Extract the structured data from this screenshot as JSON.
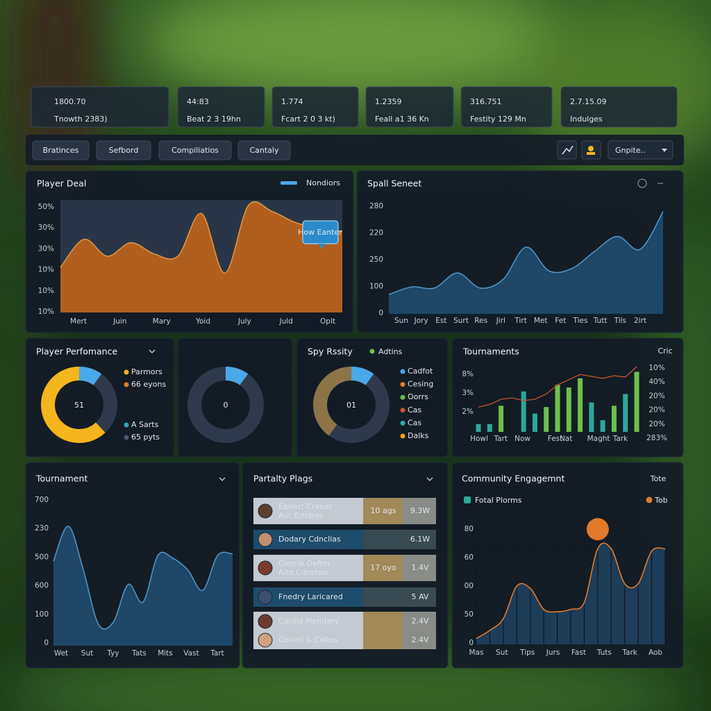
{
  "stats": [
    {
      "value": "1800.70",
      "label": "Tnowth 2383)"
    },
    {
      "value": "44:83",
      "label": "Beat 2 3 19hn"
    },
    {
      "value": "1.774",
      "label": "Fcart 2 0 3 kt)"
    },
    {
      "value": "1.2359",
      "label": "Feall a1 36 Kn"
    },
    {
      "value": "316.751",
      "label": "Festity 129 Mn"
    },
    {
      "value": "2.7.15.09",
      "label": "Indulges"
    }
  ],
  "tabs": [
    "Bratinces",
    "Sefbord",
    "Compiliatios",
    "Cantaly"
  ],
  "dropdown": "Gnpite..",
  "chart_data": [
    {
      "type": "area",
      "title": "Player Deal",
      "legend": "Nondiors",
      "legend_color": "#4aa8e8",
      "annotation": "How Eanter",
      "color": "#b8621e",
      "line_color": "#e0953f",
      "categories": [
        "Mert",
        null,
        "Juin",
        null,
        "Mary",
        null,
        "Yoid",
        null,
        "July",
        null,
        "Juld",
        null,
        "Oplt"
      ],
      "values": [
        40,
        65,
        50,
        62,
        52,
        50,
        88,
        35,
        95,
        90,
        80,
        75,
        72
      ],
      "ylim": [
        0,
        100
      ],
      "y_labels": [
        "50%",
        "30%",
        "30%",
        "10%",
        "10%",
        "10%"
      ]
    },
    {
      "type": "area",
      "title": "Spall Seneet",
      "color": "#1f4a6b",
      "line_color": "#4f93c4",
      "categories": [
        "Sun",
        "Jory",
        "Est",
        "Surt",
        "Res",
        "Jirl",
        "Tirt",
        "Met",
        "Fet",
        "Ties",
        "Tutt",
        "Tils",
        "2irt"
      ],
      "values": [
        18,
        25,
        24,
        38,
        24,
        32,
        62,
        40,
        42,
        58,
        72,
        60,
        95
      ],
      "ylim": [
        0,
        100
      ],
      "y_labels": [
        "280",
        "220",
        "250",
        "100",
        "0"
      ]
    },
    {
      "type": "donut",
      "title": "Player Perfomance",
      "center": "51",
      "values": [
        10,
        28,
        62
      ],
      "colors": [
        "#4aa8e8",
        "#2e3a4c",
        "#f5b51c"
      ],
      "legend": [
        {
          "name": "Parmors",
          "color": "#f5b51c"
        },
        {
          "name": "66 eyons",
          "color": "#e07a2a"
        },
        {
          "name": "A Sarts",
          "color": "#2aa8b0"
        },
        {
          "name": "65 pyts",
          "color": "#4a5a70"
        }
      ]
    },
    {
      "type": "donut",
      "center": "0",
      "values": [
        10,
        90
      ],
      "colors": [
        "#4aa8e8",
        "#2e3a4c"
      ]
    },
    {
      "type": "donut",
      "title": "Spy Rssity",
      "legend_title": "Adtins",
      "legend_title_color": "#6cc04a",
      "center": "01",
      "values": [
        10,
        50,
        40
      ],
      "colors": [
        "#4aa8e8",
        "#2e3a4c",
        "#8c7448"
      ],
      "legend": [
        {
          "name": "Cadfot",
          "color": "#4aa8e8"
        },
        {
          "name": "Cesing",
          "color": "#e07a2a"
        },
        {
          "name": "Oorrs",
          "color": "#6cc04a"
        },
        {
          "name": "Cas",
          "color": "#d0502a"
        },
        {
          "name": "Cas",
          "color": "#2aa8b0"
        },
        {
          "name": "Dalks",
          "color": "#f5a01c"
        }
      ]
    },
    {
      "type": "bar_line",
      "title": "Tournaments",
      "note": "Cric",
      "categories": [
        "Howl",
        null,
        "Tart",
        null,
        "Now",
        null,
        null,
        "Fest",
        "Nat",
        null,
        null,
        "Maght",
        null,
        "Tark",
        null
      ],
      "series": [
        {
          "type": "bar",
          "values": [
            12,
            12,
            40,
            0,
            62,
            28,
            38,
            72,
            68,
            82,
            45,
            18,
            40,
            58,
            92
          ],
          "colors": [
            "#2aa89a",
            "#2aa89a",
            "#6cc04a",
            "#2aa89a",
            "#2aa89a",
            "#2aa89a",
            "#6cc04a",
            "#6cc04a",
            "#6cc04a",
            "#6cc04a",
            "#2aa89a",
            "#2aa89a",
            "#6cc04a",
            "#2aa89a",
            "#6cc04a"
          ]
        },
        {
          "type": "line",
          "color": "#c8522a",
          "values": [
            38,
            42,
            50,
            52,
            48,
            50,
            58,
            72,
            80,
            88,
            85,
            82,
            86,
            84,
            100
          ]
        }
      ],
      "ylim": [
        0,
        100
      ],
      "y_labels": [
        "8%",
        "3%",
        "2%"
      ],
      "y2_labels": [
        "10%",
        "40%",
        "20%",
        "20%",
        "20%",
        "283%"
      ]
    },
    {
      "type": "area",
      "title": "Tournament",
      "color": "#1f4a6b",
      "line_color": "#4f93c4",
      "categories": [
        "Wet",
        null,
        "Sut",
        null,
        "Tyy",
        null,
        "Tats",
        null,
        "Mits",
        null,
        "Vast",
        null,
        "Tart"
      ],
      "values": [
        58,
        82,
        52,
        15,
        16,
        42,
        30,
        62,
        60,
        52,
        38,
        62,
        63
      ],
      "ylim": [
        0,
        100
      ],
      "y_labels": [
        "700",
        "230",
        "500",
        "600",
        "100",
        "0"
      ]
    },
    {
      "type": "area",
      "title": "Community Engagemnt",
      "note": "Tote",
      "color": "#1f3f5c",
      "line_color": "#e07a2a",
      "legend": [
        {
          "name": "Fotal Plorms",
          "color": "#2aa89a"
        },
        {
          "name": "Tob",
          "color": "#e07a2a"
        }
      ],
      "highlight": 9,
      "highlight_color": "#e07a2a",
      "categories": [
        "Mas",
        null,
        "Sut",
        null,
        "Tips",
        null,
        "Jurs",
        null,
        "Fast",
        null,
        "Tuts",
        null,
        "Tark",
        null,
        "Aob"
      ],
      "values": [
        5,
        12,
        22,
        50,
        48,
        30,
        28,
        30,
        36,
        82,
        82,
        52,
        52,
        80,
        82
      ],
      "ylim": [
        0,
        100
      ],
      "y_labels": [
        "80",
        "60",
        "00",
        "50",
        "0"
      ]
    }
  ],
  "list": {
    "title": "Partalty Plags",
    "rows": [
      {
        "name": "Earlert Craber",
        "sub": "Aut Erhdres",
        "count": "10 ags",
        "value": "9.3W"
      },
      {
        "name": "Dodary Cdnclias",
        "value": "6.1W"
      },
      {
        "name": "Cencle Defim",
        "sub": "Aito Cdnches",
        "count": "17 oyo",
        "value": "1.4V"
      },
      {
        "name": "Fnedry Laricared",
        "value": "5 AV"
      },
      {
        "name": "Cardla Mendary",
        "value": "2.4V"
      },
      {
        "name": "Corrall & Celtes",
        "value": "2.4V"
      }
    ]
  }
}
